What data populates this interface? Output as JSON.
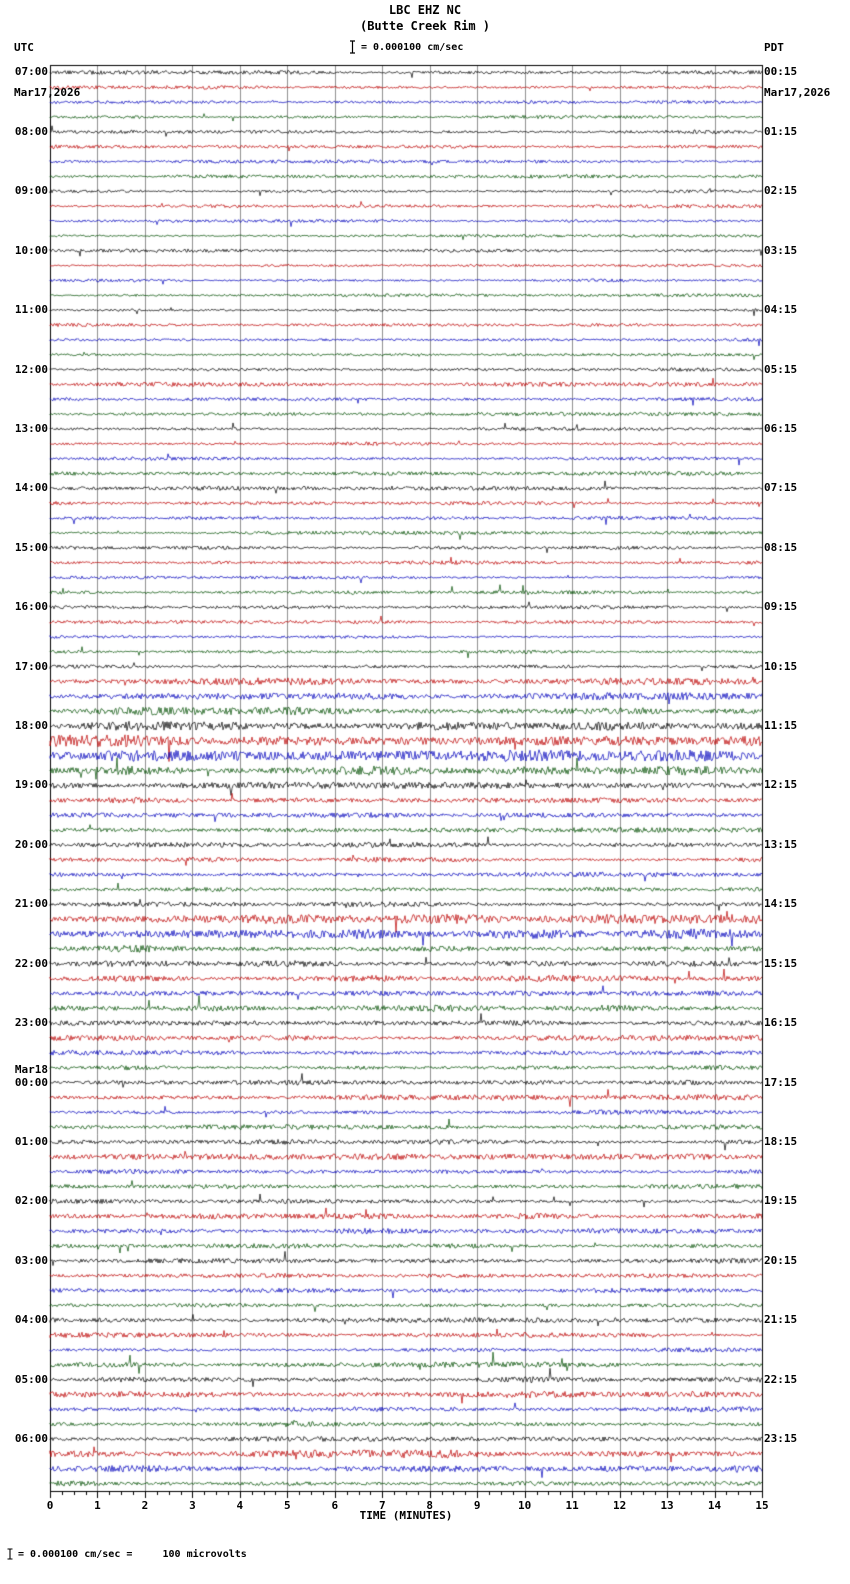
{
  "header": {
    "title_line1": "LBC EHZ NC",
    "title_line2": "(Butte Creek Rim )",
    "scale_label": "= 0.000100 cm/sec",
    "left_tz": "UTC",
    "left_date": "Mar17,2026",
    "right_tz": "PDT",
    "right_date": "Mar17,2026"
  },
  "footer": {
    "scale_text": "= 0.000100 cm/sec =     100 microvolts"
  },
  "axis": {
    "xlabel": "TIME (MINUTES)",
    "ticks": [
      "0",
      "1",
      "2",
      "3",
      "4",
      "5",
      "6",
      "7",
      "8",
      "9",
      "10",
      "11",
      "12",
      "13",
      "14",
      "15"
    ]
  },
  "chart_data": {
    "type": "line",
    "title": "LBC EHZ NC (Butte Creek Rim) 24-hour heliplot seismogram",
    "x_range_minutes": [
      0,
      15
    ],
    "rows": 96,
    "minutes_per_row": 15,
    "trace_colors": [
      "#000000",
      "#bb0000",
      "#0000bb",
      "#004d00"
    ],
    "grid_color": "#444444",
    "left_labels": [
      {
        "row": 0,
        "label": "07:00"
      },
      {
        "row": 4,
        "label": "08:00"
      },
      {
        "row": 8,
        "label": "09:00"
      },
      {
        "row": 12,
        "label": "10:00"
      },
      {
        "row": 16,
        "label": "11:00"
      },
      {
        "row": 20,
        "label": "12:00"
      },
      {
        "row": 24,
        "label": "13:00"
      },
      {
        "row": 28,
        "label": "14:00"
      },
      {
        "row": 32,
        "label": "15:00"
      },
      {
        "row": 36,
        "label": "16:00"
      },
      {
        "row": 40,
        "label": "17:00"
      },
      {
        "row": 44,
        "label": "18:00"
      },
      {
        "row": 48,
        "label": "19:00"
      },
      {
        "row": 52,
        "label": "20:00"
      },
      {
        "row": 56,
        "label": "21:00"
      },
      {
        "row": 60,
        "label": "22:00"
      },
      {
        "row": 64,
        "label": "23:00"
      },
      {
        "row": 68,
        "label": "00:00",
        "extra": "Mar18"
      },
      {
        "row": 72,
        "label": "01:00"
      },
      {
        "row": 76,
        "label": "02:00"
      },
      {
        "row": 80,
        "label": "03:00"
      },
      {
        "row": 84,
        "label": "04:00"
      },
      {
        "row": 88,
        "label": "05:00"
      },
      {
        "row": 92,
        "label": "06:00"
      }
    ],
    "right_labels": [
      {
        "row": 0,
        "label": "00:15"
      },
      {
        "row": 4,
        "label": "01:15"
      },
      {
        "row": 8,
        "label": "02:15"
      },
      {
        "row": 12,
        "label": "03:15"
      },
      {
        "row": 16,
        "label": "04:15"
      },
      {
        "row": 20,
        "label": "05:15"
      },
      {
        "row": 24,
        "label": "06:15"
      },
      {
        "row": 28,
        "label": "07:15"
      },
      {
        "row": 32,
        "label": "08:15"
      },
      {
        "row": 36,
        "label": "09:15"
      },
      {
        "row": 40,
        "label": "10:15"
      },
      {
        "row": 44,
        "label": "11:15"
      },
      {
        "row": 48,
        "label": "12:15"
      },
      {
        "row": 52,
        "label": "13:15"
      },
      {
        "row": 56,
        "label": "14:15"
      },
      {
        "row": 60,
        "label": "15:15"
      },
      {
        "row": 64,
        "label": "16:15"
      },
      {
        "row": 68,
        "label": "17:15"
      },
      {
        "row": 72,
        "label": "18:15"
      },
      {
        "row": 76,
        "label": "19:15"
      },
      {
        "row": 80,
        "label": "20:15"
      },
      {
        "row": 84,
        "label": "21:15"
      },
      {
        "row": 88,
        "label": "22:15"
      },
      {
        "row": 92,
        "label": "23:15"
      }
    ],
    "amplitudes": [
      1.0,
      0.9,
      0.9,
      0.9,
      1.0,
      0.9,
      0.8,
      0.9,
      0.8,
      0.9,
      0.8,
      0.8,
      0.9,
      0.8,
      0.8,
      0.8,
      0.8,
      0.8,
      0.9,
      0.8,
      0.9,
      1.1,
      0.9,
      0.9,
      0.9,
      0.9,
      0.9,
      1.1,
      1.0,
      0.9,
      0.9,
      0.9,
      0.9,
      1.0,
      0.9,
      0.9,
      1.0,
      0.9,
      0.9,
      0.9,
      1.1,
      1.8,
      1.8,
      1.9,
      2.2,
      2.8,
      2.8,
      2.2,
      1.8,
      1.5,
      1.4,
      1.5,
      1.3,
      1.2,
      1.2,
      1.2,
      1.3,
      2.4,
      2.4,
      1.8,
      1.5,
      1.6,
      1.3,
      1.7,
      1.3,
      1.3,
      1.2,
      1.2,
      1.2,
      1.4,
      1.2,
      1.2,
      1.2,
      1.5,
      1.2,
      1.2,
      1.3,
      1.4,
      1.4,
      1.2,
      1.2,
      1.3,
      1.2,
      1.2,
      1.2,
      1.3,
      1.2,
      1.3,
      1.4,
      1.7,
      1.4,
      1.3,
      1.3,
      1.9,
      1.7,
      1.4
    ]
  }
}
